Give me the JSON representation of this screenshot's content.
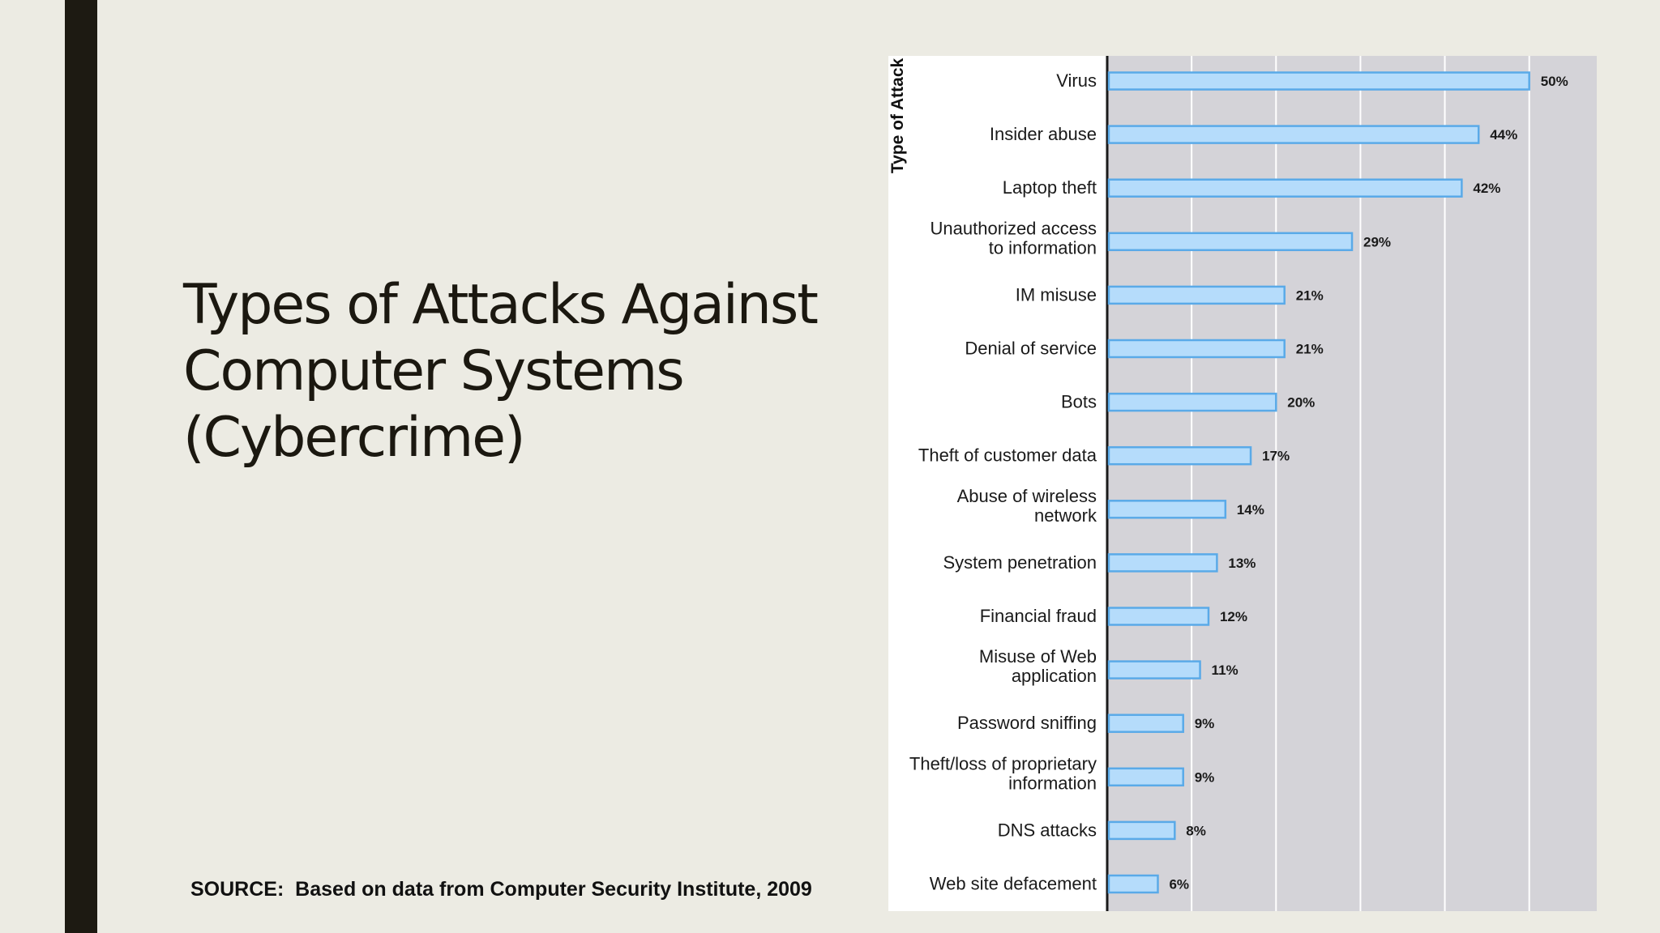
{
  "slide": {
    "title_lines": [
      "Types of Attacks Against",
      "Computer Systems",
      "(Cybercrime)"
    ],
    "source": "SOURCE:  Based on data from Computer Security Institute, 2009"
  },
  "chart_data": {
    "type": "bar",
    "orientation": "horizontal",
    "ylabel": "Type of Attack",
    "xlabel": "",
    "xlim": [
      0,
      58
    ],
    "grid": true,
    "categories": [
      [
        "Virus"
      ],
      [
        "Insider abuse"
      ],
      [
        "Laptop theft"
      ],
      [
        "Unauthorized access",
        "to information"
      ],
      [
        "IM misuse"
      ],
      [
        "Denial of service"
      ],
      [
        "Bots"
      ],
      [
        "Theft of customer data"
      ],
      [
        "Abuse of wireless",
        "network"
      ],
      [
        "System penetration"
      ],
      [
        "Financial fraud"
      ],
      [
        "Misuse of Web",
        "application"
      ],
      [
        "Password sniffing"
      ],
      [
        "Theft/loss of proprietary",
        "information"
      ],
      [
        "DNS attacks"
      ],
      [
        "Web site defacement"
      ]
    ],
    "values": [
      50,
      44,
      42,
      29,
      21,
      21,
      20,
      17,
      14,
      13,
      12,
      11,
      9,
      9,
      8,
      6
    ],
    "value_labels": [
      "50%",
      "44%",
      "42%",
      "29%",
      "21%",
      "21%",
      "20%",
      "17%",
      "14%",
      "13%",
      "12%",
      "11%",
      "9%",
      "9%",
      "8%",
      "6%"
    ],
    "colors": {
      "bar_fill": "#b5dcfb",
      "bar_stroke": "#5aaae8",
      "plot_bg": "#d4d3d8",
      "gridline": "#ffffff",
      "label_bg": "#ffffff"
    }
  }
}
